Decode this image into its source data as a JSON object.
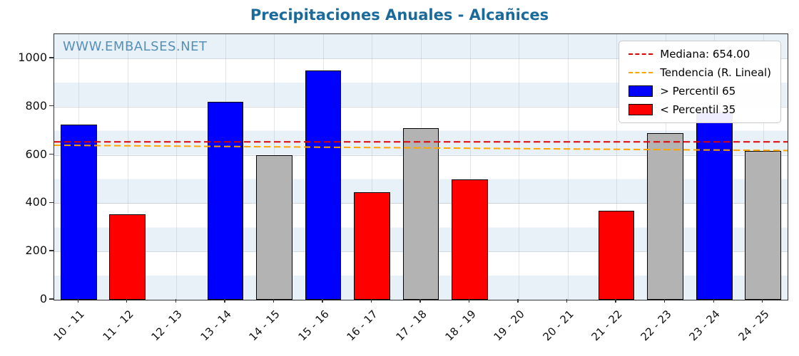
{
  "watermark": "WWW.EMBALSES.NET",
  "chart_data": {
    "type": "bar",
    "title": "Precipitaciones Anuales - Alcañices",
    "categories": [
      "10 - 11",
      "11 - 12",
      "12 - 13",
      "13 - 14",
      "14 - 15",
      "15 - 16",
      "16 - 17",
      "17 - 18",
      "18 - 19",
      "19 - 20",
      "20 - 21",
      "21 - 22",
      "22 - 23",
      "23 - 24",
      "24 - 25"
    ],
    "values": [
      725,
      355,
      0,
      820,
      600,
      950,
      445,
      710,
      497,
      0,
      0,
      368,
      690,
      780,
      615
    ],
    "classes": [
      "high",
      "low",
      "none",
      "high",
      "mid",
      "high",
      "low",
      "mid",
      "low",
      "none",
      "none",
      "low",
      "mid",
      "high",
      "mid"
    ],
    "ylim": [
      0,
      1100
    ],
    "yticks": [
      0,
      200,
      400,
      600,
      800,
      1000
    ],
    "median": 654.0,
    "trend": {
      "start": 640,
      "end": 618
    },
    "colors": {
      "high": "#0000ff",
      "low": "#ff0000",
      "mid": "#b3b3b3",
      "median_line": "#dd0000",
      "trend_line": "#ffa500"
    },
    "legend": [
      {
        "type": "line",
        "color": "#dd0000",
        "label": "Mediana: 654.00"
      },
      {
        "type": "line",
        "color": "#ffa500",
        "label": "Tendencia (R. Lineal)"
      },
      {
        "type": "patch",
        "color": "#0000ff",
        "label": "> Percentil 65"
      },
      {
        "type": "patch",
        "color": "#ff0000",
        "label": "< Percentil 35"
      }
    ],
    "xlabel": "",
    "ylabel": "",
    "legend_position": "upper right",
    "grid": true
  }
}
